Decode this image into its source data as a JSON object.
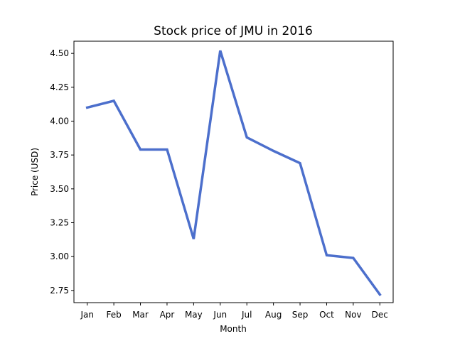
{
  "chart_data": {
    "type": "line",
    "title": "Stock price of JMU in 2016",
    "xlabel": "Month",
    "ylabel": "Price (USD)",
    "categories": [
      "Jan",
      "Feb",
      "Mar",
      "Apr",
      "May",
      "Jun",
      "Jul",
      "Aug",
      "Sep",
      "Oct",
      "Nov",
      "Dec"
    ],
    "series": [
      {
        "values": [
          4.1,
          4.15,
          3.79,
          3.79,
          3.13,
          4.52,
          3.88,
          3.78,
          3.69,
          3.01,
          2.99,
          2.72
        ],
        "color": "#4c6fcc"
      }
    ],
    "yticks": [
      "2.75",
      "3.00",
      "3.25",
      "3.50",
      "3.75",
      "4.00",
      "4.25",
      "4.50"
    ],
    "ylim": [
      2.66,
      4.59
    ],
    "grid": false,
    "legend": "none"
  }
}
